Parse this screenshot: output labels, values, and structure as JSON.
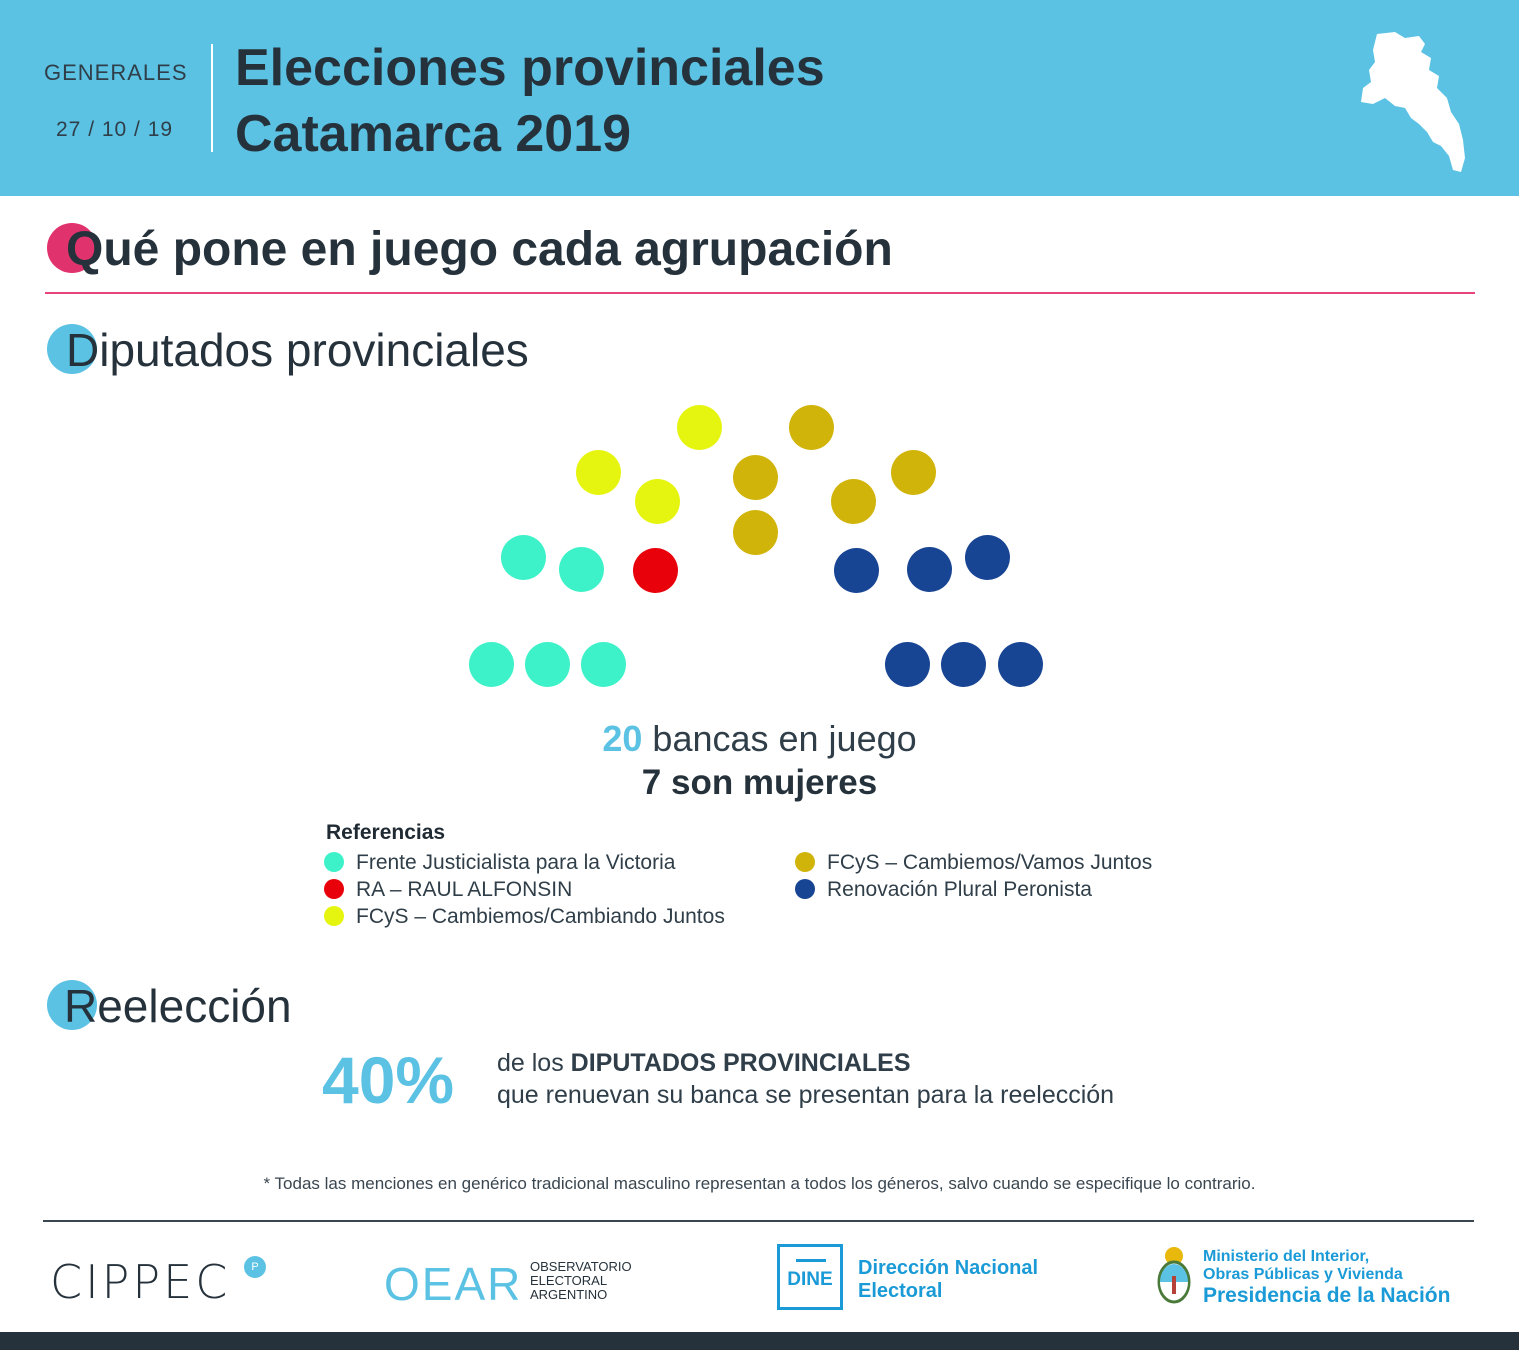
{
  "header": {
    "type_label": "GENERALES",
    "date": "27 / 10 / 19",
    "title_line1": "Elecciones provinciales",
    "title_line2": "Catamarca 2019"
  },
  "section_main": {
    "title": "Qué pone en juego cada agrupación",
    "accent": "#e0336d"
  },
  "section_diputados": {
    "title": "Diputados provinciales",
    "accent": "#5bc2e4"
  },
  "parties": [
    {
      "name": "Frente Justicialista para la Victoria",
      "color": "#3df2c8",
      "seats": 5
    },
    {
      "name": "RA – RAUL ALFONSIN",
      "color": "#e8000b",
      "seats": 1
    },
    {
      "name": "FCyS – Cambiemos/Cambiando Juntos",
      "color": "#e6f50f",
      "seats": 3
    },
    {
      "name": "FCyS – Cambiemos/Vamos Juntos",
      "color": "#d1b40a",
      "seats": 5
    },
    {
      "name": "Renovación Plural Peronista",
      "color": "#184593",
      "seats": 6
    }
  ],
  "summary": {
    "seats_number": "20",
    "seats_text": "bancas en juego",
    "women_text": "7 son mujeres"
  },
  "legend": {
    "title": "Referencias"
  },
  "section_reeleccion": {
    "title": "Reelección",
    "accent": "#5bc2e4"
  },
  "reeleccion": {
    "percent": "40%",
    "line1_prefix": "de los",
    "line1_bold": "DIPUTADOS PROVINCIALES",
    "line2": "que renuevan su banca se presentan para la reelección"
  },
  "note": "* Todas las menciones en genérico tradicional masculino representan a todos los géneros, salvo cuando se especifique lo contrario.",
  "logos": {
    "cippec": "CIPPEC",
    "oear_mark": "OEAR",
    "oear_text": [
      "OBSERVATORIO",
      "ELECTORAL",
      "ARGENTINO"
    ],
    "dine_mark": "DINE",
    "dine_line1": "Dirección Nacional",
    "dine_line2": "Electoral",
    "ministry_line1": "Ministerio del Interior,",
    "ministry_line2": "Obras Públicas y Vivienda",
    "ministry_line3": "Presidencia de la Nación"
  }
}
